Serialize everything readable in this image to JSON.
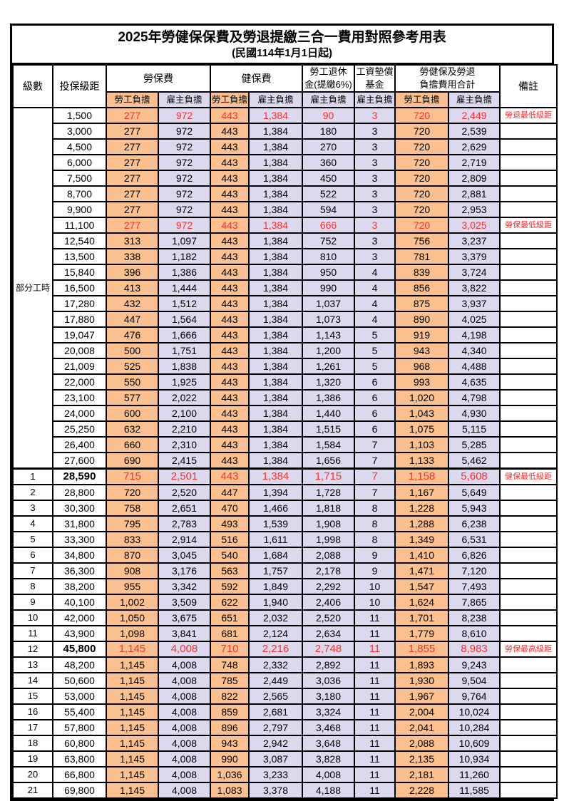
{
  "title": "2025年勞健保保費及勞退提繳三合一費用對照參考用表",
  "subtitle": "(民國114年1月1日起)",
  "colors": {
    "employee_bg": "#FAC090",
    "employer_bg": "#DCD9EE",
    "highlight_text": "#FF2D2D",
    "border": "#000000"
  },
  "header": {
    "level": "級數",
    "bracket": "投保級距",
    "labor_insurance": "勞保費",
    "health_insurance": "健保費",
    "pension_line1": "勞工退休",
    "pension_line2": "金(提繳6%)",
    "wage_fund_line1": "工資墊償",
    "wage_fund_line2": "基金",
    "total_line1": "勞健保及勞退",
    "total_line2": "負擔費用合計",
    "remark": "備註",
    "employee_share": "勞工負擔",
    "employer_share": "雇主負擔"
  },
  "part_time_label": "部分工時",
  "part_time_rowspan": 23,
  "rows": [
    {
      "level": null,
      "br": "1,500",
      "li_e": "277",
      "li_r": "972",
      "hi_e": "443",
      "hi_r": "1,384",
      "pe": "90",
      "wf": "3",
      "to_e": "720",
      "to_r": "2,449",
      "note": "勞退最低級距",
      "red": true
    },
    {
      "level": null,
      "br": "3,000",
      "li_e": "277",
      "li_r": "972",
      "hi_e": "443",
      "hi_r": "1,384",
      "pe": "180",
      "wf": "3",
      "to_e": "720",
      "to_r": "2,539",
      "note": ""
    },
    {
      "level": null,
      "br": "4,500",
      "li_e": "277",
      "li_r": "972",
      "hi_e": "443",
      "hi_r": "1,384",
      "pe": "270",
      "wf": "3",
      "to_e": "720",
      "to_r": "2,629",
      "note": ""
    },
    {
      "level": null,
      "br": "6,000",
      "li_e": "277",
      "li_r": "972",
      "hi_e": "443",
      "hi_r": "1,384",
      "pe": "360",
      "wf": "3",
      "to_e": "720",
      "to_r": "2,719",
      "note": ""
    },
    {
      "level": null,
      "br": "7,500",
      "li_e": "277",
      "li_r": "972",
      "hi_e": "443",
      "hi_r": "1,384",
      "pe": "450",
      "wf": "3",
      "to_e": "720",
      "to_r": "2,809",
      "note": ""
    },
    {
      "level": null,
      "br": "8,700",
      "li_e": "277",
      "li_r": "972",
      "hi_e": "443",
      "hi_r": "1,384",
      "pe": "522",
      "wf": "3",
      "to_e": "720",
      "to_r": "2,881",
      "note": ""
    },
    {
      "level": null,
      "br": "9,900",
      "li_e": "277",
      "li_r": "972",
      "hi_e": "443",
      "hi_r": "1,384",
      "pe": "594",
      "wf": "3",
      "to_e": "720",
      "to_r": "2,953",
      "note": ""
    },
    {
      "level": null,
      "br": "11,100",
      "li_e": "277",
      "li_r": "972",
      "hi_e": "443",
      "hi_r": "1,384",
      "pe": "666",
      "wf": "3",
      "to_e": "720",
      "to_r": "3,025",
      "note": "勞保最低級距",
      "red": true
    },
    {
      "level": null,
      "br": "12,540",
      "li_e": "313",
      "li_r": "1,097",
      "hi_e": "443",
      "hi_r": "1,384",
      "pe": "752",
      "wf": "3",
      "to_e": "756",
      "to_r": "3,237",
      "note": ""
    },
    {
      "level": null,
      "br": "13,500",
      "li_e": "338",
      "li_r": "1,182",
      "hi_e": "443",
      "hi_r": "1,384",
      "pe": "810",
      "wf": "3",
      "to_e": "781",
      "to_r": "3,379",
      "note": ""
    },
    {
      "level": null,
      "br": "15,840",
      "li_e": "396",
      "li_r": "1,386",
      "hi_e": "443",
      "hi_r": "1,384",
      "pe": "950",
      "wf": "4",
      "to_e": "839",
      "to_r": "3,724",
      "note": ""
    },
    {
      "level": null,
      "br": "16,500",
      "li_e": "413",
      "li_r": "1,444",
      "hi_e": "443",
      "hi_r": "1,384",
      "pe": "990",
      "wf": "4",
      "to_e": "856",
      "to_r": "3,822",
      "note": ""
    },
    {
      "level": null,
      "br": "17,280",
      "li_e": "432",
      "li_r": "1,512",
      "hi_e": "443",
      "hi_r": "1,384",
      "pe": "1,037",
      "wf": "4",
      "to_e": "875",
      "to_r": "3,937",
      "note": ""
    },
    {
      "level": null,
      "br": "17,880",
      "li_e": "447",
      "li_r": "1,564",
      "hi_e": "443",
      "hi_r": "1,384",
      "pe": "1,073",
      "wf": "4",
      "to_e": "890",
      "to_r": "4,025",
      "note": ""
    },
    {
      "level": null,
      "br": "19,047",
      "li_e": "476",
      "li_r": "1,666",
      "hi_e": "443",
      "hi_r": "1,384",
      "pe": "1,143",
      "wf": "5",
      "to_e": "919",
      "to_r": "4,198",
      "note": ""
    },
    {
      "level": null,
      "br": "20,008",
      "li_e": "500",
      "li_r": "1,751",
      "hi_e": "443",
      "hi_r": "1,384",
      "pe": "1,200",
      "wf": "5",
      "to_e": "943",
      "to_r": "4,340",
      "note": ""
    },
    {
      "level": null,
      "br": "21,009",
      "li_e": "525",
      "li_r": "1,838",
      "hi_e": "443",
      "hi_r": "1,384",
      "pe": "1,261",
      "wf": "5",
      "to_e": "968",
      "to_r": "4,488",
      "note": ""
    },
    {
      "level": null,
      "br": "22,000",
      "li_e": "550",
      "li_r": "1,925",
      "hi_e": "443",
      "hi_r": "1,384",
      "pe": "1,320",
      "wf": "6",
      "to_e": "993",
      "to_r": "4,635",
      "note": ""
    },
    {
      "level": null,
      "br": "23,100",
      "li_e": "577",
      "li_r": "2,022",
      "hi_e": "443",
      "hi_r": "1,384",
      "pe": "1,386",
      "wf": "6",
      "to_e": "1,020",
      "to_r": "4,798",
      "note": ""
    },
    {
      "level": null,
      "br": "24,000",
      "li_e": "600",
      "li_r": "2,100",
      "hi_e": "443",
      "hi_r": "1,384",
      "pe": "1,440",
      "wf": "6",
      "to_e": "1,043",
      "to_r": "4,930",
      "note": ""
    },
    {
      "level": null,
      "br": "25,250",
      "li_e": "632",
      "li_r": "2,210",
      "hi_e": "443",
      "hi_r": "1,384",
      "pe": "1,515",
      "wf": "6",
      "to_e": "1,075",
      "to_r": "5,115",
      "note": ""
    },
    {
      "level": null,
      "br": "26,400",
      "li_e": "660",
      "li_r": "2,310",
      "hi_e": "443",
      "hi_r": "1,384",
      "pe": "1,584",
      "wf": "7",
      "to_e": "1,103",
      "to_r": "5,285",
      "note": ""
    },
    {
      "level": null,
      "br": "27,600",
      "li_e": "690",
      "li_r": "2,415",
      "hi_e": "443",
      "hi_r": "1,384",
      "pe": "1,656",
      "wf": "7",
      "to_e": "1,133",
      "to_r": "5,462",
      "note": ""
    },
    {
      "level": "1",
      "br": "28,590",
      "li_e": "715",
      "li_r": "2,501",
      "hi_e": "443",
      "hi_r": "1,384",
      "pe": "1,715",
      "wf": "7",
      "to_e": "1,158",
      "to_r": "5,608",
      "note": "健保最低級距",
      "red": true,
      "bold": true,
      "thick_top": true
    },
    {
      "level": "2",
      "br": "28,800",
      "li_e": "720",
      "li_r": "2,520",
      "hi_e": "447",
      "hi_r": "1,394",
      "pe": "1,728",
      "wf": "7",
      "to_e": "1,167",
      "to_r": "5,649",
      "note": ""
    },
    {
      "level": "3",
      "br": "30,300",
      "li_e": "758",
      "li_r": "2,651",
      "hi_e": "470",
      "hi_r": "1,466",
      "pe": "1,818",
      "wf": "8",
      "to_e": "1,228",
      "to_r": "5,943",
      "note": ""
    },
    {
      "level": "4",
      "br": "31,800",
      "li_e": "795",
      "li_r": "2,783",
      "hi_e": "493",
      "hi_r": "1,539",
      "pe": "1,908",
      "wf": "8",
      "to_e": "1,288",
      "to_r": "6,238",
      "note": ""
    },
    {
      "level": "5",
      "br": "33,300",
      "li_e": "833",
      "li_r": "2,914",
      "hi_e": "516",
      "hi_r": "1,611",
      "pe": "1,998",
      "wf": "8",
      "to_e": "1,349",
      "to_r": "6,531",
      "note": ""
    },
    {
      "level": "6",
      "br": "34,800",
      "li_e": "870",
      "li_r": "3,045",
      "hi_e": "540",
      "hi_r": "1,684",
      "pe": "2,088",
      "wf": "9",
      "to_e": "1,410",
      "to_r": "6,826",
      "note": ""
    },
    {
      "level": "7",
      "br": "36,300",
      "li_e": "908",
      "li_r": "3,176",
      "hi_e": "563",
      "hi_r": "1,757",
      "pe": "2,178",
      "wf": "9",
      "to_e": "1,471",
      "to_r": "7,120",
      "note": ""
    },
    {
      "level": "8",
      "br": "38,200",
      "li_e": "955",
      "li_r": "3,342",
      "hi_e": "592",
      "hi_r": "1,849",
      "pe": "2,292",
      "wf": "10",
      "to_e": "1,547",
      "to_r": "7,493",
      "note": ""
    },
    {
      "level": "9",
      "br": "40,100",
      "li_e": "1,002",
      "li_r": "3,509",
      "hi_e": "622",
      "hi_r": "1,940",
      "pe": "2,406",
      "wf": "10",
      "to_e": "1,624",
      "to_r": "7,865",
      "note": ""
    },
    {
      "level": "10",
      "br": "42,000",
      "li_e": "1,050",
      "li_r": "3,675",
      "hi_e": "651",
      "hi_r": "2,032",
      "pe": "2,520",
      "wf": "11",
      "to_e": "1,701",
      "to_r": "8,238",
      "note": ""
    },
    {
      "level": "11",
      "br": "43,900",
      "li_e": "1,098",
      "li_r": "3,841",
      "hi_e": "681",
      "hi_r": "2,124",
      "pe": "2,634",
      "wf": "11",
      "to_e": "1,779",
      "to_r": "8,610",
      "note": ""
    },
    {
      "level": "12",
      "br": "45,800",
      "li_e": "1,145",
      "li_r": "4,008",
      "hi_e": "710",
      "hi_r": "2,216",
      "pe": "2,748",
      "wf": "11",
      "to_e": "1,855",
      "to_r": "8,983",
      "note": "勞保最高級距",
      "red": true,
      "bold": true
    },
    {
      "level": "13",
      "br": "48,200",
      "li_e": "1,145",
      "li_r": "4,008",
      "hi_e": "748",
      "hi_r": "2,332",
      "pe": "2,892",
      "wf": "11",
      "to_e": "1,893",
      "to_r": "9,243",
      "note": ""
    },
    {
      "level": "14",
      "br": "50,600",
      "li_e": "1,145",
      "li_r": "4,008",
      "hi_e": "785",
      "hi_r": "2,449",
      "pe": "3,036",
      "wf": "11",
      "to_e": "1,930",
      "to_r": "9,504",
      "note": ""
    },
    {
      "level": "15",
      "br": "53,000",
      "li_e": "1,145",
      "li_r": "4,008",
      "hi_e": "822",
      "hi_r": "2,565",
      "pe": "3,180",
      "wf": "11",
      "to_e": "1,967",
      "to_r": "9,764",
      "note": ""
    },
    {
      "level": "16",
      "br": "55,400",
      "li_e": "1,145",
      "li_r": "4,008",
      "hi_e": "859",
      "hi_r": "2,681",
      "pe": "3,324",
      "wf": "11",
      "to_e": "2,004",
      "to_r": "10,024",
      "note": ""
    },
    {
      "level": "17",
      "br": "57,800",
      "li_e": "1,145",
      "li_r": "4,008",
      "hi_e": "896",
      "hi_r": "2,797",
      "pe": "3,468",
      "wf": "11",
      "to_e": "2,041",
      "to_r": "10,284",
      "note": ""
    },
    {
      "level": "18",
      "br": "60,800",
      "li_e": "1,145",
      "li_r": "4,008",
      "hi_e": "943",
      "hi_r": "2,942",
      "pe": "3,648",
      "wf": "11",
      "to_e": "2,088",
      "to_r": "10,609",
      "note": ""
    },
    {
      "level": "19",
      "br": "63,800",
      "li_e": "1,145",
      "li_r": "4,008",
      "hi_e": "990",
      "hi_r": "3,087",
      "pe": "3,828",
      "wf": "11",
      "to_e": "2,135",
      "to_r": "10,934",
      "note": ""
    },
    {
      "level": "20",
      "br": "66,800",
      "li_e": "1,145",
      "li_r": "4,008",
      "hi_e": "1,036",
      "hi_r": "3,233",
      "pe": "4,008",
      "wf": "11",
      "to_e": "2,181",
      "to_r": "11,260",
      "note": ""
    },
    {
      "level": "21",
      "br": "69,800",
      "li_e": "1,145",
      "li_r": "4,008",
      "hi_e": "1,083",
      "hi_r": "3,378",
      "pe": "4,188",
      "wf": "11",
      "to_e": "2,228",
      "to_r": "11,585",
      "note": ""
    }
  ]
}
